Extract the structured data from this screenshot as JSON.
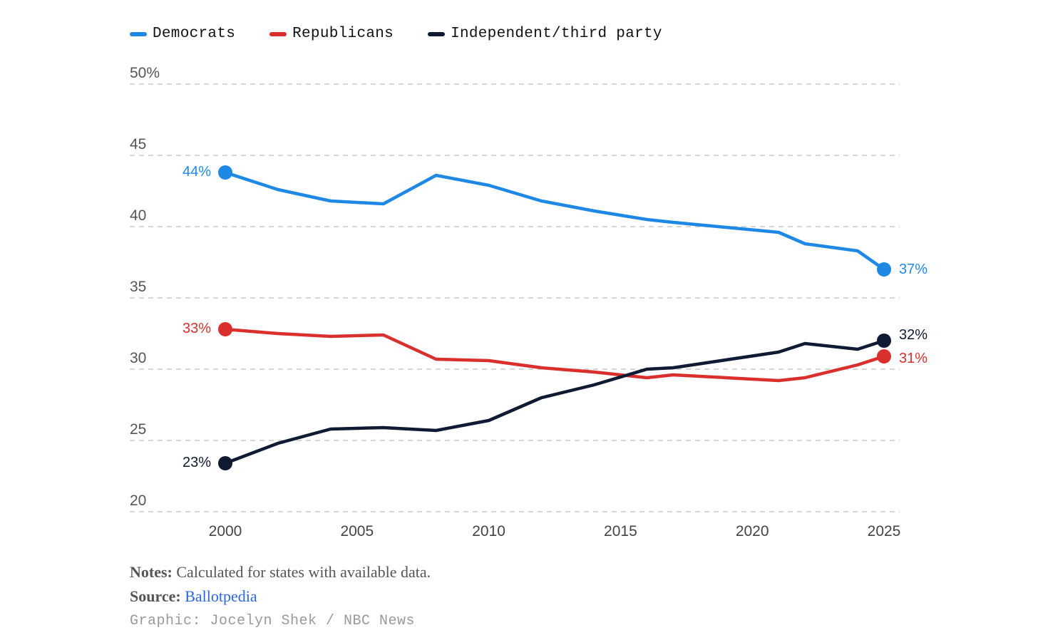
{
  "legend": [
    {
      "label": "Democrats",
      "color": "#1e88e5"
    },
    {
      "label": "Republicans",
      "color": "#d9302e"
    },
    {
      "label": "Independent/third party",
      "color": "#0f1a33"
    }
  ],
  "chart_data": {
    "type": "line",
    "y_tick_labels": [
      "50%",
      "45",
      "40",
      "35",
      "30",
      "25",
      "20"
    ],
    "y_ticks": [
      50,
      45,
      40,
      35,
      30,
      25,
      20
    ],
    "x_ticks": [
      2000,
      2005,
      2010,
      2015,
      2020,
      2025
    ],
    "xlim": [
      1997,
      2026
    ],
    "ylim": [
      20,
      50
    ],
    "grid": true,
    "legend_position": "top-left",
    "series": [
      {
        "name": "Democrats",
        "color": "#1e88e5",
        "x": [
          2000,
          2002,
          2004,
          2006,
          2008,
          2010,
          2012,
          2014,
          2016,
          2017,
          2021,
          2022,
          2024,
          2025
        ],
        "values": [
          43.8,
          42.6,
          41.8,
          41.6,
          43.6,
          42.9,
          41.8,
          41.1,
          40.5,
          40.3,
          39.6,
          38.8,
          38.3,
          37.0
        ],
        "start_label": "44%",
        "end_label": "37%"
      },
      {
        "name": "Republicans",
        "color": "#d9302e",
        "x": [
          2000,
          2002,
          2004,
          2006,
          2008,
          2010,
          2012,
          2014,
          2016,
          2017,
          2021,
          2022,
          2024,
          2025
        ],
        "values": [
          32.8,
          32.5,
          32.3,
          32.4,
          30.7,
          30.6,
          30.1,
          29.8,
          29.4,
          29.6,
          29.2,
          29.4,
          30.3,
          30.9
        ],
        "start_label": "33%",
        "end_label": "31%"
      },
      {
        "name": "Independent/third party",
        "color": "#0f1a33",
        "x": [
          2000,
          2002,
          2004,
          2006,
          2008,
          2010,
          2012,
          2014,
          2016,
          2017,
          2021,
          2022,
          2024,
          2025
        ],
        "values": [
          23.4,
          24.8,
          25.8,
          25.9,
          25.7,
          26.4,
          28.0,
          28.9,
          30.0,
          30.1,
          31.2,
          31.8,
          31.4,
          32.0
        ],
        "start_label": "23%",
        "end_label": "32%"
      }
    ]
  },
  "footer": {
    "notes_label": "Notes:",
    "notes_text": " Calculated for states with available data.",
    "source_label": "Source:",
    "source_link": "Ballotpedia",
    "credit": "Graphic: Jocelyn Shek / NBC News"
  }
}
